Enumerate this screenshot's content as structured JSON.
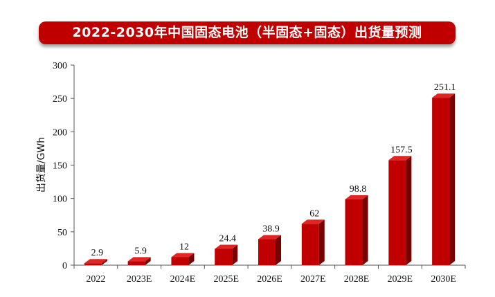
{
  "title": "2022-2030年中国固态电池（半固态+固态）出货量预测",
  "colors": {
    "banner": "#c00000",
    "bar_front": "#c00000",
    "bar_top": "#e02525",
    "bar_side": "#7a0000",
    "axis": "#555555"
  },
  "chart_data": {
    "type": "bar",
    "title": "2022-2030年中国固态电池（半固态+固态）出货量预测",
    "xlabel": "",
    "ylabel": "出货量/GWh",
    "ylim": [
      0,
      300
    ],
    "yticks": [
      0,
      50,
      100,
      150,
      200,
      250,
      300
    ],
    "categories": [
      "2022",
      "2023E",
      "2024E",
      "2025E",
      "2026E",
      "2027E",
      "2028E",
      "2029E",
      "2030E"
    ],
    "values": [
      2.9,
      5.9,
      12,
      24.4,
      38.9,
      62,
      98.8,
      157.5,
      251.1
    ],
    "value_labels": [
      "2.9",
      "5.9",
      "12",
      "24.4",
      "38.9",
      "62",
      "98.8",
      "157.5",
      "251.1"
    ],
    "grid": false,
    "legend": "none"
  }
}
